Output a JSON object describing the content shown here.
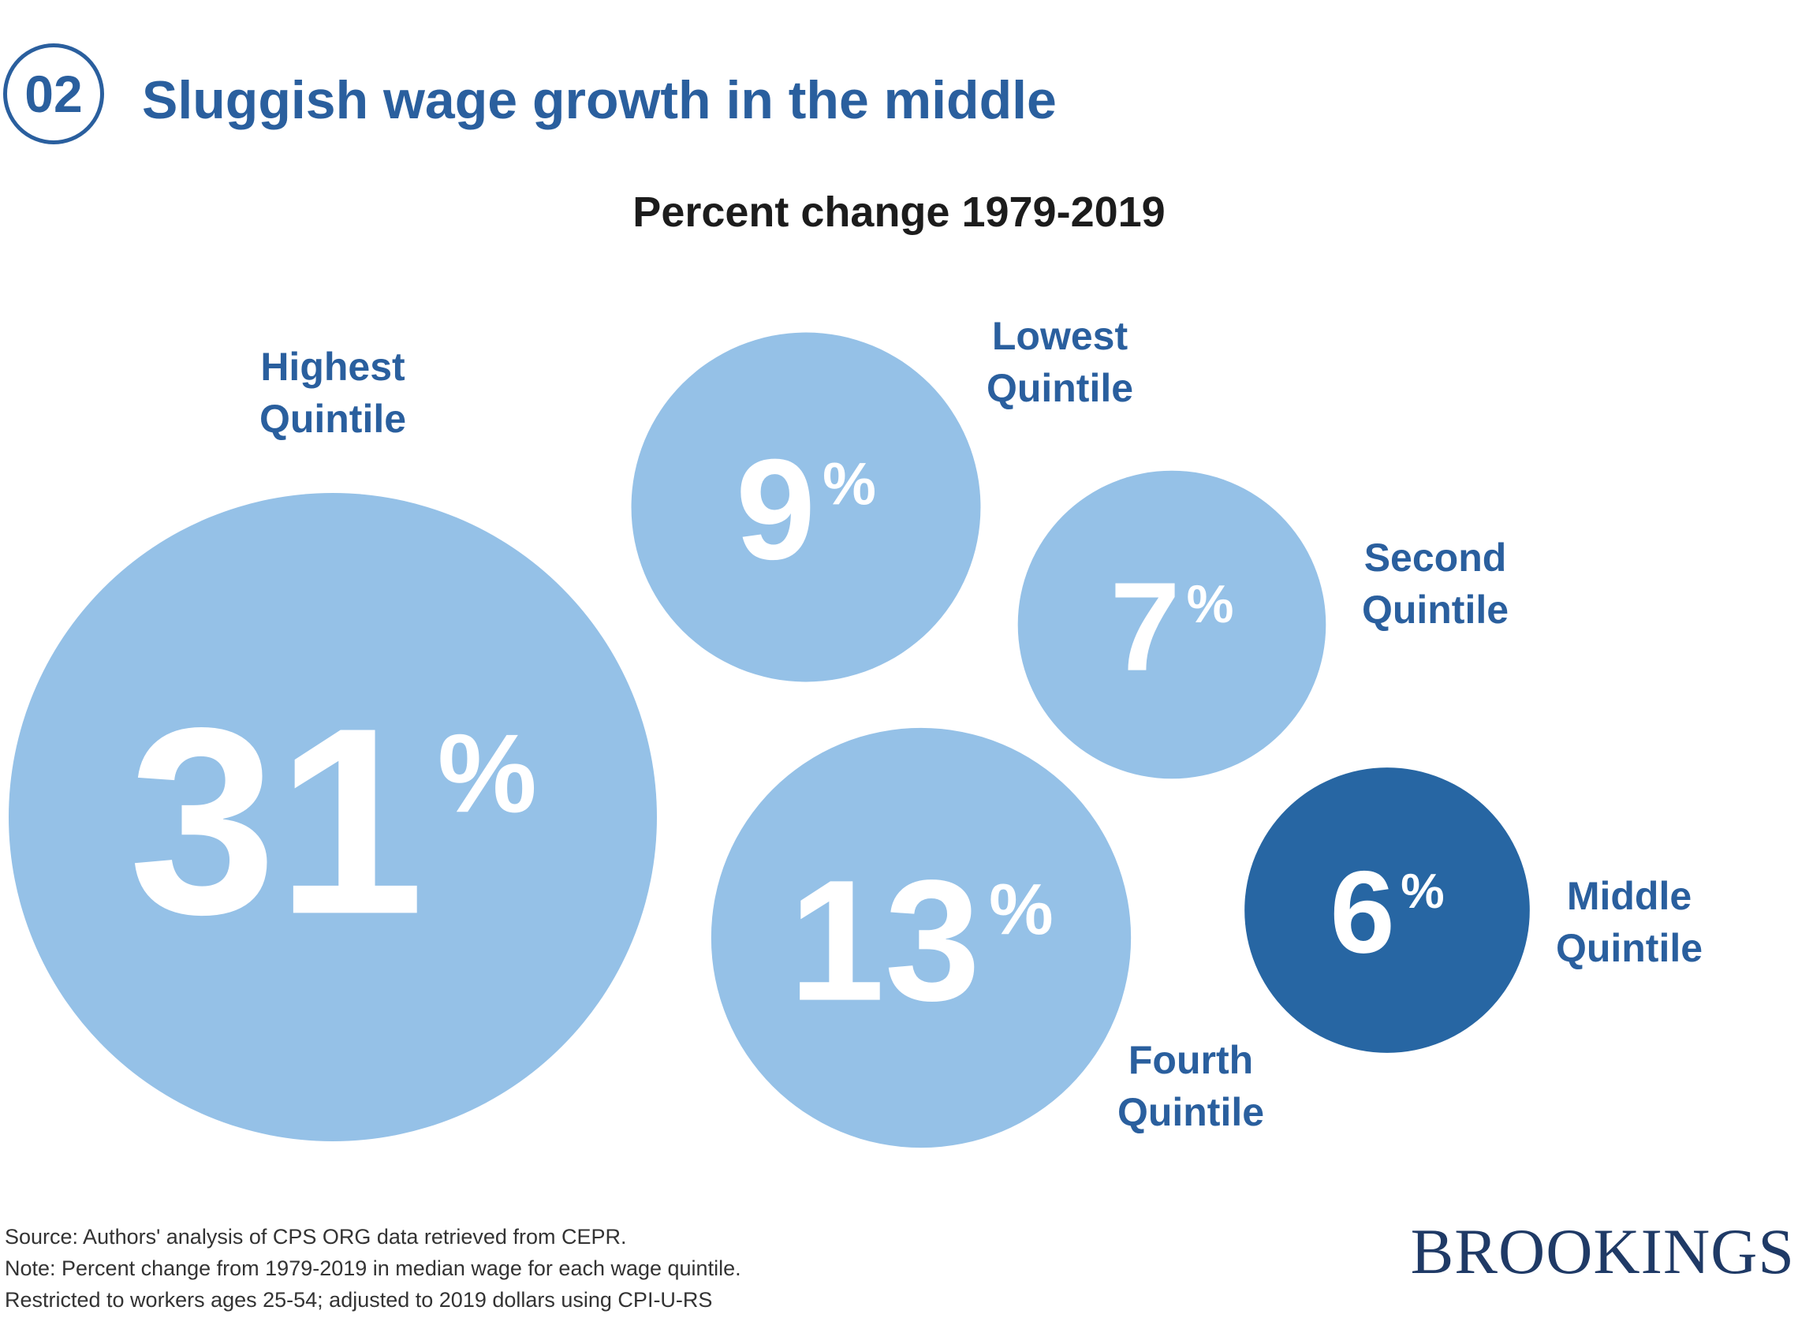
{
  "header": {
    "number": "02",
    "title": "Sluggish wage growth in the middle"
  },
  "chart_data": {
    "type": "bubble",
    "title": "Percent change 1979-2019",
    "unit": "%",
    "points": [
      {
        "label": [
          "Highest",
          "Quintile"
        ],
        "value": 31,
        "color": "#95c1e7"
      },
      {
        "label": [
          "Lowest",
          "Quintile"
        ],
        "value": 9,
        "color": "#95c1e7"
      },
      {
        "label": [
          "Second",
          "Quintile"
        ],
        "value": 7,
        "color": "#95c1e7"
      },
      {
        "label": [
          "Fourth",
          "Quintile"
        ],
        "value": 13,
        "color": "#95c1e7"
      },
      {
        "label": [
          "Middle",
          "Quintile"
        ],
        "value": 6,
        "color": "#2766a3"
      }
    ],
    "label_color": "#2a5f9e"
  },
  "footer": {
    "notes": [
      "Source: Authors' analysis of CPS ORG data retrieved from CEPR.",
      "Note: Percent change from 1979-2019 in median wage for each wage quintile.",
      "Restricted to workers ages 25-54; adjusted to 2019 dollars using CPI-U-RS"
    ],
    "logo": "BROOKINGS"
  }
}
